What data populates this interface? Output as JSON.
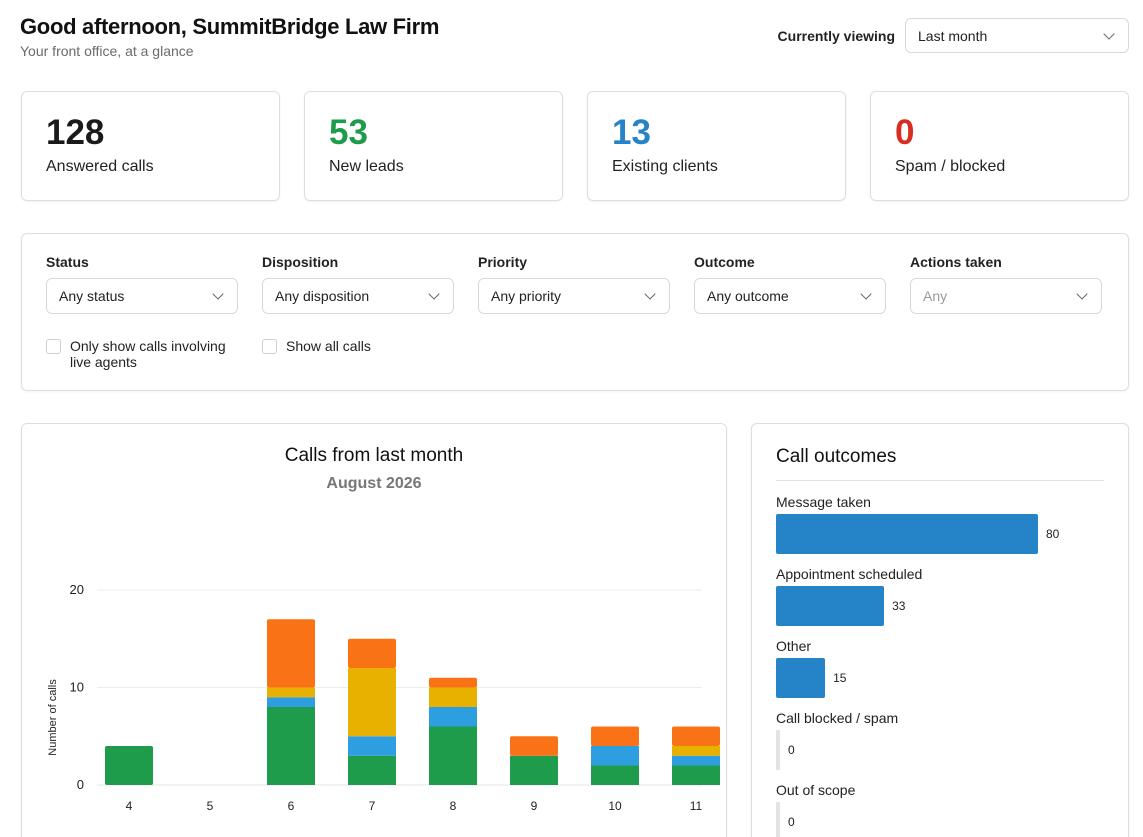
{
  "header": {
    "greeting": "Good afternoon, SummitBridge Law Firm",
    "subtitle": "Your front office, at a glance",
    "viewing_label": "Currently viewing",
    "viewing_value": "Last month"
  },
  "stats": [
    {
      "value": "128",
      "label": "Answered calls",
      "color": "#1a1a1a"
    },
    {
      "value": "53",
      "label": "New leads",
      "color": "#1e9c4b"
    },
    {
      "value": "13",
      "label": "Existing clients",
      "color": "#2583c7"
    },
    {
      "value": "0",
      "label": "Spam / blocked",
      "color": "#d92d20"
    }
  ],
  "filters": {
    "status": {
      "label": "Status",
      "value": "Any status"
    },
    "disposition": {
      "label": "Disposition",
      "value": "Any disposition"
    },
    "priority": {
      "label": "Priority",
      "value": "Any priority"
    },
    "outcome": {
      "label": "Outcome",
      "value": "Any outcome"
    },
    "actions": {
      "label": "Actions taken",
      "value": "Any"
    },
    "live_agents_label": "Only show calls involving live agents",
    "show_all_label": "Show all calls"
  },
  "chart_data": {
    "type": "bar",
    "stacked": true,
    "title": "Calls from last month",
    "subtitle": "August 2026",
    "ylabel": "Number of calls",
    "xlabel": "",
    "ylim": [
      0,
      20
    ],
    "yticks": [
      0,
      10,
      20
    ],
    "grid": true,
    "categories": [
      "4",
      "5",
      "6",
      "7",
      "8",
      "9",
      "10",
      "11"
    ],
    "series": [
      {
        "color": "#1e9c4b",
        "values": [
          4,
          0,
          8,
          3,
          6,
          3,
          2,
          2
        ]
      },
      {
        "color": "#2d9fe0",
        "values": [
          0,
          0,
          1,
          2,
          2,
          0,
          2,
          1
        ]
      },
      {
        "color": "#e8b100",
        "values": [
          0,
          0,
          1,
          7,
          2,
          0,
          0,
          1
        ]
      },
      {
        "color": "#f97316",
        "values": [
          0,
          0,
          7,
          3,
          1,
          2,
          2,
          2
        ]
      }
    ]
  },
  "outcomes": {
    "title": "Call outcomes",
    "max": 80,
    "items": [
      {
        "label": "Message taken",
        "value": 80
      },
      {
        "label": "Appointment scheduled",
        "value": 33
      },
      {
        "label": "Other",
        "value": 15
      },
      {
        "label": "Call blocked / spam",
        "value": 0
      },
      {
        "label": "Out of scope",
        "value": 0
      }
    ]
  }
}
